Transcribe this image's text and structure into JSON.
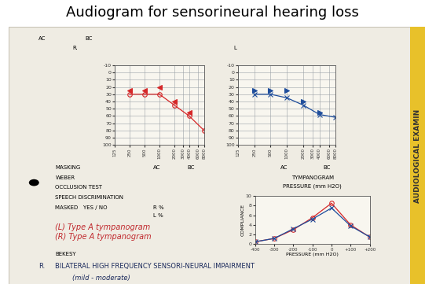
{
  "header": {
    "title": "Audiogram for sensorineural hearing loss",
    "ac": "AC",
    "bc": "BC",
    "right": "R.",
    "left": "L"
  },
  "form": {
    "masking": "MASKING",
    "masking_right": [
      "AC",
      "BC"
    ],
    "masking_left": [
      "AC",
      "BC"
    ],
    "weber": "WEBER",
    "occlusion_test": "OCCLUSION TEST",
    "speech_discrimination": "SPEECH DISCRIMINATION",
    "masked": "MASKED   YES / NO",
    "right_percent": "R %",
    "left_percent": "L %",
    "tympanogram": "TYMPANOGRAM",
    "pressure": "PRESSURE (mm H2O)",
    "bekesy": "BEKESY",
    "side_tab": "AUDIOLOGICAL EXAMIN"
  },
  "notes": {
    "left_tympanogram": "(L) Type A tympanogram",
    "right_tympanogram": "(R) Type A tympanogram",
    "bekesy_right": "R.",
    "diagnosis": "BILATERAL HIGH FREQUENCY SENSORI-NEURAL IMPAIRMENT",
    "degree": "(mild - moderate)"
  },
  "chart_data": [
    {
      "type": "line",
      "log": "x",
      "grid": true,
      "x": [
        250,
        500,
        1000,
        2000,
        4000,
        8000
      ],
      "xlim": [
        125,
        8000
      ],
      "xticks": [
        125,
        250,
        500,
        1000,
        2000,
        3000,
        4000,
        6000,
        8000
      ],
      "ylim": [
        100,
        -10
      ],
      "yticks": [
        -10,
        0,
        10,
        20,
        30,
        40,
        50,
        60,
        70,
        80,
        90,
        100
      ],
      "series": [
        {
          "color": "#d62728",
          "marker": "circle",
          "line_style": "solid",
          "values": [
            30,
            30,
            30,
            45,
            60,
            80
          ]
        },
        {
          "color": "#d62728",
          "marker": "left_caret",
          "line_style": "none",
          "values": [
            25,
            25,
            20,
            40,
            55,
            null
          ]
        }
      ]
    },
    {
      "type": "line",
      "log": "x",
      "grid": true,
      "x": [
        250,
        500,
        1000,
        2000,
        4000,
        8000
      ],
      "xlim": [
        125,
        8000
      ],
      "xticks": [
        125,
        250,
        500,
        1000,
        2000,
        3000,
        4000,
        6000,
        8000
      ],
      "ylim": [
        100,
        -10
      ],
      "yticks": [
        -10,
        0,
        10,
        20,
        30,
        40,
        50,
        60,
        70,
        80,
        90,
        100
      ],
      "series": [
        {
          "color": "#1f4e9c",
          "marker": "cross",
          "line_style": "solid",
          "values": [
            30,
            30,
            35,
            45,
            58,
            62
          ]
        },
        {
          "color": "#1f4e9c",
          "marker": "right_caret",
          "line_style": "none",
          "values": [
            25,
            25,
            25,
            40,
            55,
            null
          ]
        }
      ]
    },
    {
      "type": "line",
      "grid": false,
      "xlabel": "PRESSURE (mm H2O)",
      "ylabel": "COMPLIANCE",
      "x": [
        -400,
        -300,
        -200,
        -100,
        0,
        100,
        200
      ],
      "xlim": [
        -400,
        200
      ],
      "xticks": [
        -400,
        -300,
        -200,
        -100,
        0,
        {
          "value": 100,
          "label": "+100"
        },
        {
          "value": 200,
          "label": "+200"
        }
      ],
      "ylim": [
        0,
        10
      ],
      "yticks": [
        0,
        2,
        4,
        6,
        8,
        10
      ],
      "series": [
        {
          "color": "#d62728",
          "marker": "circle",
          "line_style": "solid",
          "values": [
            0.5,
            1.2,
            3,
            5.5,
            8.5,
            4,
            1.5
          ]
        },
        {
          "color": "#1f4e9c",
          "marker": "cross",
          "line_style": "solid",
          "values": [
            0.5,
            1.2,
            3.2,
            5.2,
            7.5,
            3.8,
            1.5
          ]
        }
      ]
    }
  ]
}
